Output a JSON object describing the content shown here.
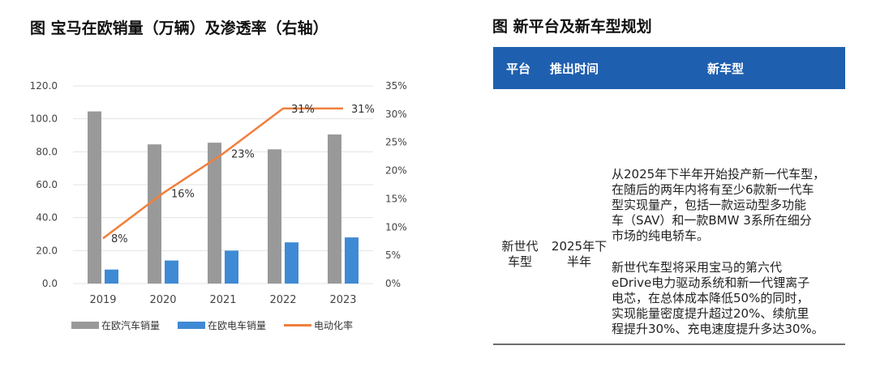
{
  "chart_title": "图 宝马在欧销量（万辆）及渗透率（右轴）",
  "table_title": "图 新平台及新车型规划",
  "chart_data": {
    "type": "bar",
    "categories": [
      "2019",
      "2020",
      "2021",
      "2022",
      "2023"
    ],
    "series": [
      {
        "name": "在欧汽车销量",
        "type": "bar",
        "axis": "left",
        "color": "#999999",
        "values": [
          104.5,
          84.5,
          85.5,
          81.5,
          90.5
        ]
      },
      {
        "name": "在欧电车销量",
        "type": "bar",
        "axis": "left",
        "color": "#3f8ad4",
        "values": [
          8.5,
          14.0,
          20.0,
          25.0,
          28.0
        ]
      },
      {
        "name": "电动化率",
        "type": "line",
        "axis": "right",
        "color": "#f07f3c",
        "values": [
          8,
          16,
          23,
          31,
          31
        ],
        "labels": [
          "8%",
          "16%",
          "23%",
          "31%",
          "31%"
        ]
      }
    ],
    "ylim_left": [
      0,
      120
    ],
    "yticks_left": [
      "0.0",
      "20.0",
      "40.0",
      "60.0",
      "80.0",
      "100.0",
      "120.0"
    ],
    "ylim_right": [
      0,
      35
    ],
    "yticks_right": [
      "0%",
      "5%",
      "10%",
      "15%",
      "20%",
      "25%",
      "30%",
      "35%"
    ],
    "grid": true,
    "legend_position": "bottom"
  },
  "table": {
    "headers": [
      "平台",
      "推出时间",
      "新车型"
    ],
    "row": {
      "platform_lines": [
        "新世代",
        "车型"
      ],
      "time_lines": [
        "2025年下",
        "半年"
      ],
      "model_paragraphs": [
        [
          "从2025年下半年开始投产新一代车型，",
          "在随后的两年内将有至少6款新一代车",
          "型实现量产，包括一款运动型多功能",
          "车（SAV）和一款BMW 3系所在细分",
          "市场的纯电轿车。"
        ],
        [
          "新世代车型将采用宝马的第六代",
          "eDrive电力驱动系统和新一代锂离子",
          "电芯，在总体成本降低50%的同时，",
          "实现能量密度提升超过20%、续航里",
          "程提升30%、充电速度提升多达30%。"
        ]
      ]
    }
  }
}
